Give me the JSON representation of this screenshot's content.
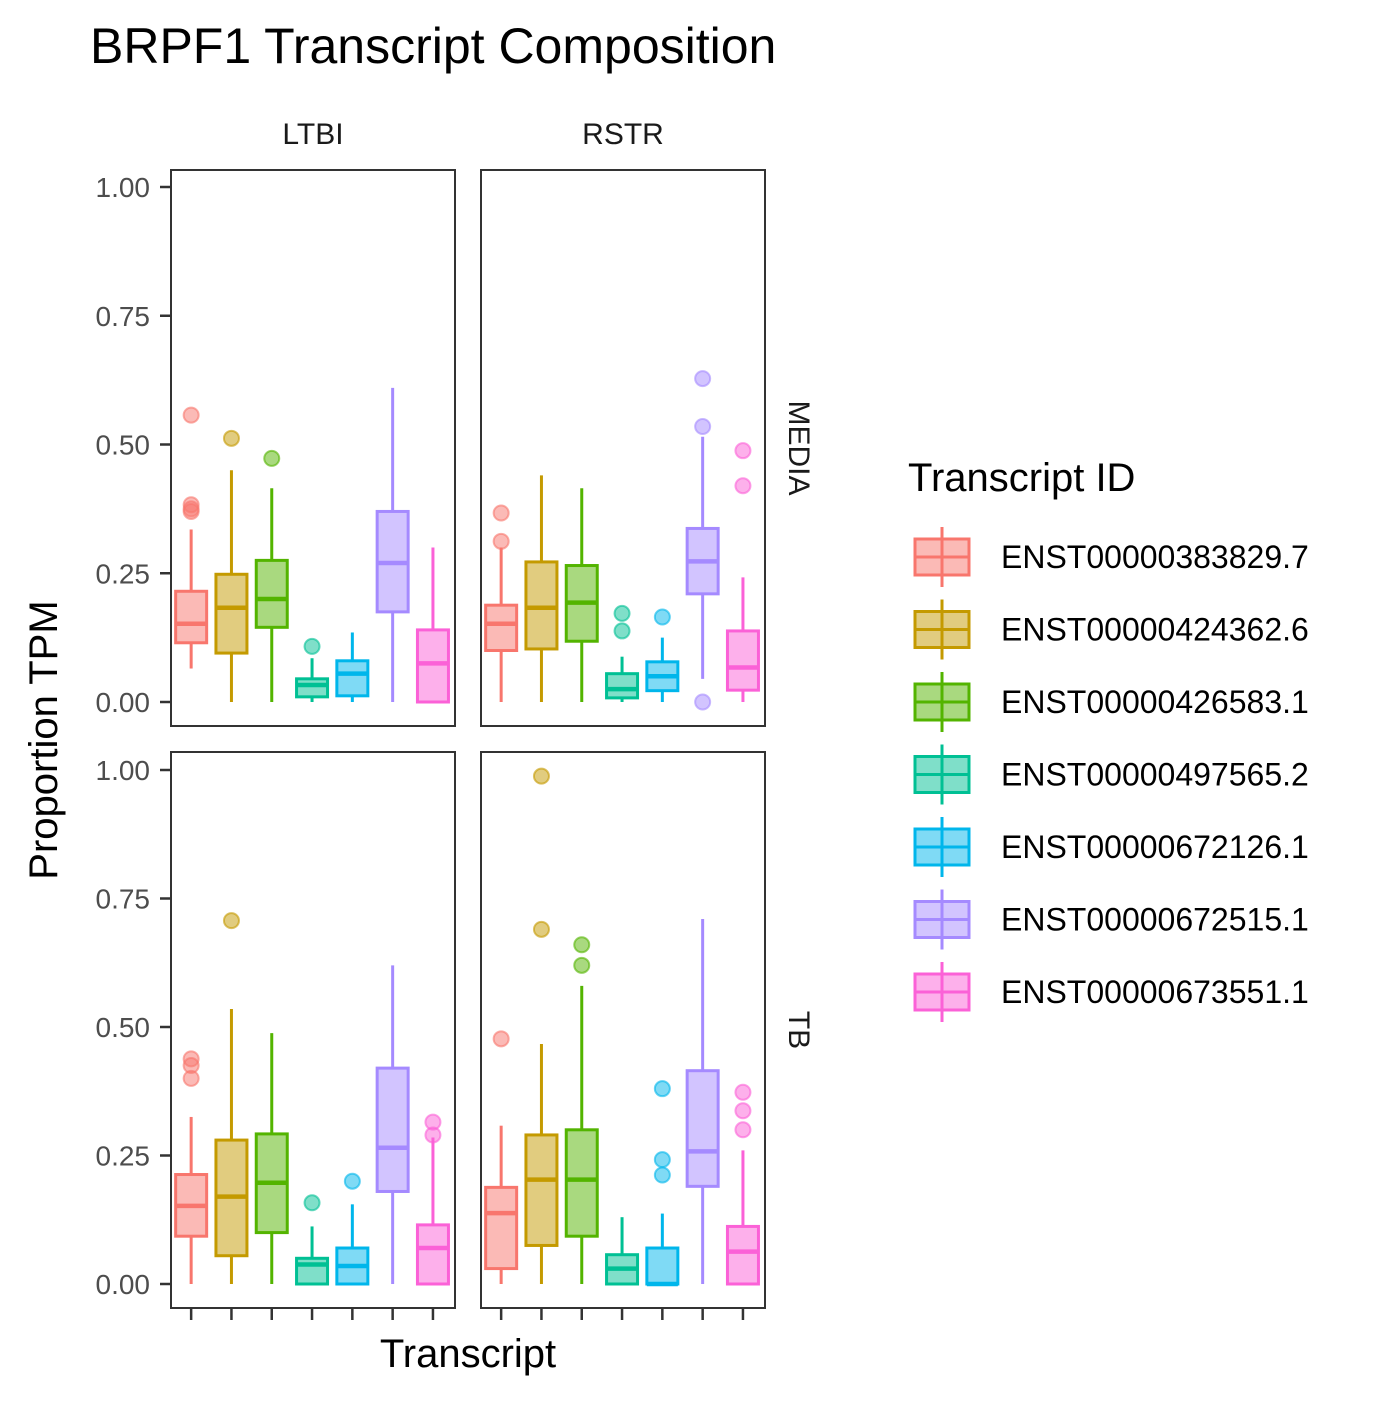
{
  "chart_data": {
    "type": "boxplot",
    "title": "BRPF1 Transcript Composition",
    "xlabel": "Transcript",
    "ylabel": "Proportion TPM",
    "ylim": [
      0,
      1
    ],
    "y_ticks": [
      "0.00",
      "0.25",
      "0.50",
      "0.75",
      "1.00"
    ],
    "y_tick_values": [
      0,
      0.25,
      0.5,
      0.75,
      1.0
    ],
    "grid": false,
    "facet_cols": [
      "LTBI",
      "RSTR"
    ],
    "facet_rows": [
      "MEDIA",
      "TB"
    ],
    "legend": {
      "title": "Transcript ID",
      "placement": "right",
      "entries": [
        {
          "label": "ENST00000383829.7",
          "color": "#F8766D"
        },
        {
          "label": "ENST00000424362.6",
          "color": "#C49A00"
        },
        {
          "label": "ENST00000426583.1",
          "color": "#53B400"
        },
        {
          "label": "ENST00000497565.2",
          "color": "#00C094"
        },
        {
          "label": "ENST00000672126.1",
          "color": "#00B6EB"
        },
        {
          "label": "ENST00000672515.1",
          "color": "#A58AFF"
        },
        {
          "label": "ENST00000673551.1",
          "color": "#FB61D7"
        }
      ]
    },
    "panels": [
      {
        "col": "LTBI",
        "row": "MEDIA",
        "boxes": [
          {
            "min": 0.065,
            "q1": 0.115,
            "median": 0.152,
            "q3": 0.215,
            "max": 0.335,
            "outliers": [
              0.37,
              0.375,
              0.383,
              0.557
            ]
          },
          {
            "min": 0.0,
            "q1": 0.095,
            "median": 0.183,
            "q3": 0.248,
            "max": 0.45,
            "outliers": [
              0.512
            ]
          },
          {
            "min": 0.0,
            "q1": 0.145,
            "median": 0.2,
            "q3": 0.275,
            "max": 0.415,
            "outliers": [
              0.473
            ]
          },
          {
            "min": 0.0,
            "q1": 0.01,
            "median": 0.033,
            "q3": 0.045,
            "max": 0.085,
            "outliers": [
              0.108
            ]
          },
          {
            "min": 0.0,
            "q1": 0.012,
            "median": 0.055,
            "q3": 0.08,
            "max": 0.135,
            "outliers": []
          },
          {
            "min": 0.0,
            "q1": 0.175,
            "median": 0.27,
            "q3": 0.37,
            "max": 0.61,
            "outliers": []
          },
          {
            "min": 0.0,
            "q1": 0.0,
            "median": 0.075,
            "q3": 0.14,
            "max": 0.3,
            "outliers": []
          }
        ]
      },
      {
        "col": "RSTR",
        "row": "MEDIA",
        "boxes": [
          {
            "min": 0.0,
            "q1": 0.1,
            "median": 0.152,
            "q3": 0.188,
            "max": 0.3,
            "outliers": [
              0.312,
              0.367
            ]
          },
          {
            "min": 0.0,
            "q1": 0.103,
            "median": 0.183,
            "q3": 0.272,
            "max": 0.44,
            "outliers": []
          },
          {
            "min": 0.0,
            "q1": 0.118,
            "median": 0.193,
            "q3": 0.265,
            "max": 0.415,
            "outliers": []
          },
          {
            "min": 0.0,
            "q1": 0.008,
            "median": 0.025,
            "q3": 0.055,
            "max": 0.088,
            "outliers": [
              0.138,
              0.172
            ]
          },
          {
            "min": 0.0,
            "q1": 0.022,
            "median": 0.05,
            "q3": 0.078,
            "max": 0.125,
            "outliers": [
              0.165
            ]
          },
          {
            "min": 0.045,
            "q1": 0.21,
            "median": 0.273,
            "q3": 0.337,
            "max": 0.515,
            "outliers": [
              0.0,
              0.535,
              0.628
            ]
          },
          {
            "min": 0.0,
            "q1": 0.023,
            "median": 0.067,
            "q3": 0.138,
            "max": 0.242,
            "outliers": [
              0.42,
              0.488
            ]
          }
        ]
      },
      {
        "col": "LTBI",
        "row": "TB",
        "boxes": [
          {
            "min": 0.0,
            "q1": 0.093,
            "median": 0.152,
            "q3": 0.213,
            "max": 0.325,
            "outliers": [
              0.4,
              0.425,
              0.438
            ]
          },
          {
            "min": 0.0,
            "q1": 0.055,
            "median": 0.17,
            "q3": 0.28,
            "max": 0.535,
            "outliers": [
              0.707
            ]
          },
          {
            "min": 0.0,
            "q1": 0.1,
            "median": 0.197,
            "q3": 0.292,
            "max": 0.488,
            "outliers": []
          },
          {
            "min": 0.0,
            "q1": 0.0,
            "median": 0.038,
            "q3": 0.05,
            "max": 0.112,
            "outliers": [
              0.158
            ]
          },
          {
            "min": 0.0,
            "q1": 0.0,
            "median": 0.035,
            "q3": 0.07,
            "max": 0.155,
            "outliers": [
              0.2
            ]
          },
          {
            "min": 0.0,
            "q1": 0.18,
            "median": 0.265,
            "q3": 0.42,
            "max": 0.62,
            "outliers": []
          },
          {
            "min": 0.0,
            "q1": 0.0,
            "median": 0.07,
            "q3": 0.115,
            "max": 0.285,
            "outliers": [
              0.29,
              0.315
            ]
          }
        ]
      },
      {
        "col": "RSTR",
        "row": "TB",
        "boxes": [
          {
            "min": 0.0,
            "q1": 0.03,
            "median": 0.138,
            "q3": 0.188,
            "max": 0.308,
            "outliers": [
              0.477
            ]
          },
          {
            "min": 0.0,
            "q1": 0.075,
            "median": 0.203,
            "q3": 0.29,
            "max": 0.467,
            "outliers": [
              0.69,
              0.988
            ]
          },
          {
            "min": 0.0,
            "q1": 0.093,
            "median": 0.203,
            "q3": 0.3,
            "max": 0.58,
            "outliers": [
              0.62,
              0.66
            ]
          },
          {
            "min": 0.0,
            "q1": 0.0,
            "median": 0.03,
            "q3": 0.057,
            "max": 0.13,
            "outliers": []
          },
          {
            "min": 0.0,
            "q1": 0.0,
            "median": 0.0,
            "q3": 0.07,
            "max": 0.137,
            "outliers": [
              0.212,
              0.242,
              0.38
            ]
          },
          {
            "min": 0.0,
            "q1": 0.19,
            "median": 0.258,
            "q3": 0.415,
            "max": 0.71,
            "outliers": []
          },
          {
            "min": 0.0,
            "q1": 0.0,
            "median": 0.063,
            "q3": 0.112,
            "max": 0.26,
            "outliers": [
              0.3,
              0.337,
              0.373
            ]
          }
        ]
      }
    ]
  }
}
